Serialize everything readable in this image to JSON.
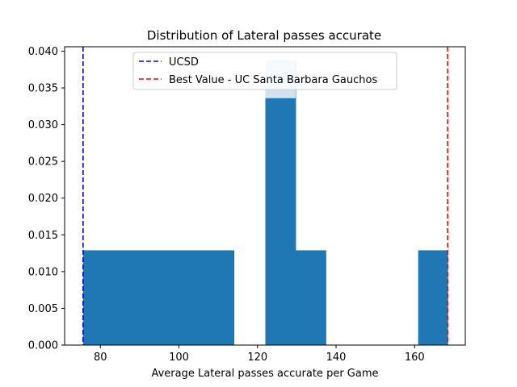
{
  "chart_data": {
    "type": "histogram",
    "title": "Distribution of Lateral passes accurate",
    "xlabel": "Average Lateral passes accurate per Game",
    "ylabel": "",
    "xlim": [
      70.9,
      172.9
    ],
    "ylim": [
      0,
      0.0406
    ],
    "x_ticks": [
      80,
      100,
      120,
      140,
      160
    ],
    "y_ticks": [
      0.0,
      0.005,
      0.01,
      0.015,
      0.02,
      0.025,
      0.03,
      0.035,
      0.04
    ],
    "y_tick_labels": [
      "0.000",
      "0.005",
      "0.010",
      "0.015",
      "0.020",
      "0.025",
      "0.030",
      "0.035",
      "0.040"
    ],
    "bins": [
      {
        "x0": 75.6,
        "x1": 81.3,
        "density": 0.0129
      },
      {
        "x0": 81.3,
        "x1": 87.0,
        "density": 0.0129
      },
      {
        "x0": 87.0,
        "x1": 92.7,
        "density": 0.0129
      },
      {
        "x0": 92.7,
        "x1": 98.4,
        "density": 0.0129
      },
      {
        "x0": 98.4,
        "x1": 104.1,
        "density": 0.0129
      },
      {
        "x0": 104.1,
        "x1": 109.8,
        "density": 0.0129
      },
      {
        "x0": 109.8,
        "x1": 114.0,
        "density": 0.0129
      },
      {
        "x0": 122.0,
        "x1": 129.7,
        "density": 0.0387
      },
      {
        "x0": 129.7,
        "x1": 137.4,
        "density": 0.0129
      },
      {
        "x0": 160.9,
        "x1": 168.4,
        "density": 0.0129
      }
    ],
    "bar_color": "#1f77b4",
    "highlight_bar": {
      "x0": 122.0,
      "x1": 129.7,
      "density": 0.0387,
      "color": "#1f77b4",
      "overlay_color": "#d3e3ee"
    },
    "reference_lines": [
      {
        "name": "UCSD",
        "x": 75.6,
        "color": "#0000ff",
        "style": "dashed"
      },
      {
        "name": "Best Value - UC Santa Barbara Gauchos",
        "x": 168.4,
        "color": "#ff0000",
        "style": "dashed"
      }
    ],
    "legend": {
      "placement": "upper-center",
      "entries": [
        "UCSD",
        "Best Value - UC Santa Barbara Gauchos"
      ]
    },
    "grid": false
  }
}
